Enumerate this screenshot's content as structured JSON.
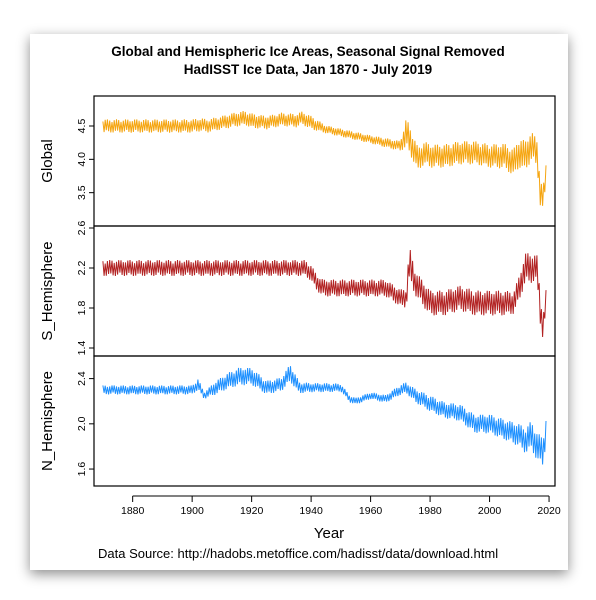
{
  "chart_data": {
    "type": "line",
    "title": "Global and Hemispheric Ice Areas, Seasonal Signal Removed",
    "subtitle": "HadISST Ice Data, Jan 1870 - July 2019",
    "xlabel": "Year",
    "xlim": [
      1867,
      2022
    ],
    "x_ticks": [
      1880,
      1900,
      1920,
      1940,
      1960,
      1980,
      2000,
      2020
    ],
    "source": "Data Source: http://hadobs.metoffice.com/hadisst/data/download.html",
    "colors": {
      "global": "#f5a510",
      "south": "#b22222",
      "north": "#1e90ff"
    },
    "panels": [
      {
        "name": "Global",
        "ylim": [
          3.0,
          4.95
        ],
        "y_ticks": [
          3.5,
          4.0,
          4.5
        ],
        "series": {
          "x": [
            1870,
            1875,
            1880,
            1885,
            1890,
            1895,
            1900,
            1903,
            1905,
            1910,
            1915,
            1918,
            1920,
            1925,
            1930,
            1935,
            1937,
            1940,
            1945,
            1950,
            1955,
            1960,
            1965,
            1970,
            1972,
            1974,
            1976,
            1978,
            1980,
            1985,
            1990,
            1995,
            2000,
            2005,
            2008,
            2010,
            2012,
            2014,
            2016,
            2017,
            2018,
            2019
          ],
          "y": [
            4.5,
            4.5,
            4.5,
            4.5,
            4.5,
            4.5,
            4.5,
            4.52,
            4.5,
            4.55,
            4.6,
            4.62,
            4.58,
            4.55,
            4.6,
            4.58,
            4.62,
            4.55,
            4.45,
            4.4,
            4.35,
            4.3,
            4.25,
            4.2,
            4.4,
            4.2,
            4.0,
            4.1,
            4.05,
            4.05,
            4.1,
            4.1,
            4.05,
            4.05,
            3.95,
            4.1,
            4.05,
            4.2,
            4.1,
            3.5,
            3.4,
            3.8
          ],
          "amp": [
            0.2,
            0.2,
            0.2,
            0.2,
            0.2,
            0.2,
            0.2,
            0.2,
            0.2,
            0.2,
            0.22,
            0.22,
            0.22,
            0.2,
            0.2,
            0.2,
            0.2,
            0.2,
            0.12,
            0.12,
            0.12,
            0.12,
            0.14,
            0.15,
            0.45,
            0.4,
            0.35,
            0.35,
            0.35,
            0.35,
            0.35,
            0.35,
            0.35,
            0.38,
            0.4,
            0.45,
            0.45,
            0.45,
            0.4,
            0.4,
            0.35,
            0.3
          ]
        }
      },
      {
        "name": "S_Hemisphere",
        "ylim": [
          1.32,
          2.62
        ],
        "y_ticks": [
          1.4,
          1.8,
          2.2,
          2.6
        ],
        "series": {
          "x": [
            1870,
            1880,
            1890,
            1900,
            1910,
            1920,
            1930,
            1938,
            1940,
            1942,
            1944,
            1946,
            1950,
            1955,
            1960,
            1965,
            1970,
            1972,
            1973,
            1974,
            1975,
            1980,
            1985,
            1990,
            1995,
            2000,
            2005,
            2008,
            2010,
            2012,
            2014,
            2016,
            2017,
            2018,
            2019
          ],
          "y": [
            2.2,
            2.2,
            2.2,
            2.2,
            2.2,
            2.2,
            2.2,
            2.2,
            2.15,
            2.05,
            2.0,
            2.0,
            2.0,
            2.0,
            2.0,
            2.0,
            1.9,
            1.9,
            2.25,
            2.15,
            2.05,
            1.85,
            1.85,
            1.9,
            1.85,
            1.85,
            1.85,
            1.85,
            2.0,
            2.2,
            2.2,
            2.2,
            1.8,
            1.6,
            1.9
          ],
          "amp": [
            0.16,
            0.16,
            0.16,
            0.16,
            0.16,
            0.16,
            0.16,
            0.16,
            0.16,
            0.16,
            0.17,
            0.17,
            0.17,
            0.17,
            0.17,
            0.17,
            0.17,
            0.2,
            0.35,
            0.3,
            0.25,
            0.25,
            0.25,
            0.25,
            0.25,
            0.25,
            0.25,
            0.22,
            0.25,
            0.3,
            0.3,
            0.25,
            0.3,
            0.25,
            0.18
          ]
        }
      },
      {
        "name": "N_Hemisphere",
        "ylim": [
          1.45,
          2.6
        ],
        "y_ticks": [
          1.6,
          2.0,
          2.4
        ],
        "series": {
          "x": [
            1870,
            1880,
            1890,
            1900,
            1902,
            1904,
            1908,
            1912,
            1916,
            1920,
            1925,
            1930,
            1933,
            1936,
            1940,
            1945,
            1950,
            1953,
            1955,
            1960,
            1965,
            1970,
            1972,
            1975,
            1980,
            1985,
            1990,
            1995,
            2000,
            2005,
            2010,
            2012,
            2014,
            2016,
            2018,
            2019
          ],
          "y": [
            2.3,
            2.3,
            2.3,
            2.3,
            2.35,
            2.25,
            2.32,
            2.38,
            2.42,
            2.42,
            2.32,
            2.35,
            2.45,
            2.32,
            2.32,
            2.32,
            2.32,
            2.22,
            2.2,
            2.25,
            2.22,
            2.3,
            2.32,
            2.25,
            2.18,
            2.12,
            2.1,
            2.0,
            2.0,
            1.95,
            1.9,
            1.85,
            1.9,
            1.8,
            1.75,
            1.95
          ],
          "amp": [
            0.08,
            0.08,
            0.08,
            0.08,
            0.1,
            0.06,
            0.12,
            0.14,
            0.16,
            0.15,
            0.12,
            0.12,
            0.16,
            0.1,
            0.08,
            0.08,
            0.07,
            0.06,
            0.06,
            0.06,
            0.07,
            0.09,
            0.1,
            0.12,
            0.14,
            0.14,
            0.15,
            0.16,
            0.17,
            0.18,
            0.2,
            0.22,
            0.25,
            0.25,
            0.25,
            0.22
          ]
        }
      }
    ]
  }
}
